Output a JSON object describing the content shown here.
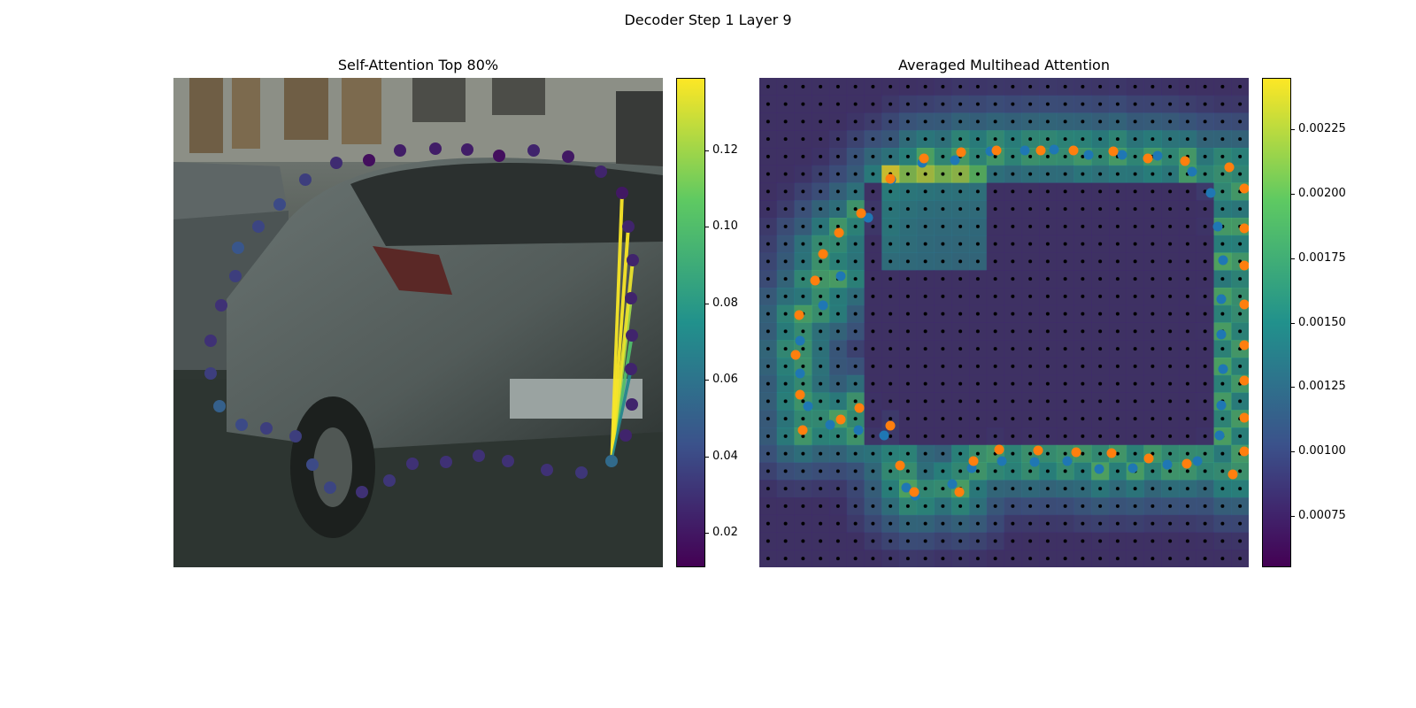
{
  "figure": {
    "suptitle": "Decoder Step 1 Layer 9"
  },
  "colors": {
    "viridis": [
      "#440154",
      "#3b528b",
      "#21918c",
      "#5ec962",
      "#fde725"
    ],
    "blue": "#1f77b4",
    "orange": "#ff7f0e"
  },
  "chart_data": [
    {
      "type": "scatter",
      "title": "Self-Attention Top 80%",
      "background": "car image (photo)",
      "colorbar": {
        "ticks": [
          "0.02",
          "0.04",
          "0.06",
          "0.08",
          "0.10",
          "0.12"
        ],
        "vmin": 0.011,
        "vmax": 0.139
      },
      "query_point": {
        "x": 495,
        "y": 433,
        "value": 0.055
      },
      "points": [
        {
          "x": 495,
          "y": 433,
          "v": 0.055
        },
        {
          "x": 511,
          "y": 404,
          "v": 0.025
        },
        {
          "x": 518,
          "y": 369,
          "v": 0.025
        },
        {
          "x": 517,
          "y": 329,
          "v": 0.025
        },
        {
          "x": 518,
          "y": 291,
          "v": 0.025
        },
        {
          "x": 517,
          "y": 249,
          "v": 0.025
        },
        {
          "x": 519,
          "y": 206,
          "v": 0.025
        },
        {
          "x": 514,
          "y": 168,
          "v": 0.025
        },
        {
          "x": 507,
          "y": 130,
          "v": 0.02
        },
        {
          "x": 483,
          "y": 106,
          "v": 0.025
        },
        {
          "x": 446,
          "y": 89,
          "v": 0.02
        },
        {
          "x": 407,
          "y": 82,
          "v": 0.025
        },
        {
          "x": 368,
          "y": 88,
          "v": 0.016
        },
        {
          "x": 332,
          "y": 81,
          "v": 0.022
        },
        {
          "x": 296,
          "y": 80,
          "v": 0.022
        },
        {
          "x": 256,
          "y": 82,
          "v": 0.022
        },
        {
          "x": 221,
          "y": 93,
          "v": 0.016
        },
        {
          "x": 184,
          "y": 96,
          "v": 0.028
        },
        {
          "x": 149,
          "y": 115,
          "v": 0.035
        },
        {
          "x": 120,
          "y": 143,
          "v": 0.04
        },
        {
          "x": 96,
          "y": 168,
          "v": 0.038
        },
        {
          "x": 73,
          "y": 192,
          "v": 0.045
        },
        {
          "x": 70,
          "y": 224,
          "v": 0.035
        },
        {
          "x": 54,
          "y": 257,
          "v": 0.03
        },
        {
          "x": 42,
          "y": 297,
          "v": 0.03
        },
        {
          "x": 42,
          "y": 334,
          "v": 0.035
        },
        {
          "x": 52,
          "y": 371,
          "v": 0.05
        },
        {
          "x": 77,
          "y": 392,
          "v": 0.04
        },
        {
          "x": 105,
          "y": 396,
          "v": 0.035
        },
        {
          "x": 138,
          "y": 405,
          "v": 0.035
        },
        {
          "x": 157,
          "y": 437,
          "v": 0.04
        },
        {
          "x": 177,
          "y": 463,
          "v": 0.038
        },
        {
          "x": 213,
          "y": 468,
          "v": 0.03
        },
        {
          "x": 244,
          "y": 455,
          "v": 0.032
        },
        {
          "x": 270,
          "y": 436,
          "v": 0.03
        },
        {
          "x": 308,
          "y": 434,
          "v": 0.03
        },
        {
          "x": 345,
          "y": 427,
          "v": 0.03
        },
        {
          "x": 378,
          "y": 433,
          "v": 0.03
        },
        {
          "x": 422,
          "y": 443,
          "v": 0.03
        },
        {
          "x": 461,
          "y": 446,
          "v": 0.032
        }
      ],
      "attention_links": [
        {
          "to": 4,
          "w": 0.1
        },
        {
          "to": 5,
          "w": 0.12
        },
        {
          "to": 6,
          "w": 0.135
        },
        {
          "to": 7,
          "w": 0.138
        },
        {
          "to": 8,
          "w": 0.138
        },
        {
          "to": 3,
          "w": 0.07
        }
      ]
    },
    {
      "type": "heatmap",
      "title": "Averaged Multihead Attention",
      "colorbar": {
        "ticks": [
          "0.00075",
          "0.00100",
          "0.00125",
          "0.00150",
          "0.00175",
          "0.00200",
          "0.00225"
        ],
        "vmin": 0.00055,
        "vmax": 0.00245
      },
      "grid": {
        "cols": 28,
        "rows": 28
      },
      "series": [
        {
          "name": "",
          "color": "blue",
          "points": [
            [
              184,
              96
            ],
            [
              221,
              93
            ],
            [
              261,
              83
            ],
            [
              300,
              82
            ],
            [
              333,
              81
            ],
            [
              372,
              87
            ],
            [
              410,
              87
            ],
            [
              450,
              88
            ],
            [
              489,
              106
            ],
            [
              510,
              130
            ],
            [
              518,
              168
            ],
            [
              524,
              206
            ],
            [
              522,
              250
            ],
            [
              522,
              290
            ],
            [
              524,
              329
            ],
            [
              522,
              370
            ],
            [
              520,
              404
            ],
            [
              495,
              433
            ],
            [
              461,
              437
            ],
            [
              422,
              441
            ],
            [
              384,
              442
            ],
            [
              348,
              433
            ],
            [
              311,
              434
            ],
            [
              274,
              433
            ],
            [
              240,
              441
            ],
            [
              218,
              459
            ],
            [
              176,
              472
            ],
            [
              166,
              463
            ],
            [
              141,
              404
            ],
            [
              112,
              398
            ],
            [
              80,
              392
            ],
            [
              55,
              371
            ],
            [
              46,
              334
            ],
            [
              46,
              297
            ],
            [
              72,
              257
            ],
            [
              92,
              224
            ],
            [
              123,
              158
            ],
            [
              149,
              115
            ]
          ]
        },
        {
          "name": "",
          "color": "orange",
          "points": [
            [
              186,
              91
            ],
            [
              228,
              84
            ],
            [
              268,
              82
            ],
            [
              318,
              82
            ],
            [
              355,
              82
            ],
            [
              400,
              83
            ],
            [
              439,
              91
            ],
            [
              481,
              94
            ],
            [
              531,
              101
            ],
            [
              548,
              125
            ],
            [
              548,
              170
            ],
            [
              548,
              212
            ],
            [
              548,
              256
            ],
            [
              548,
              302
            ],
            [
              548,
              342
            ],
            [
              548,
              384
            ],
            [
              548,
              422
            ],
            [
              535,
              448
            ],
            [
              483,
              436
            ],
            [
              440,
              430
            ],
            [
              398,
              424
            ],
            [
              358,
              423
            ],
            [
              315,
              421
            ],
            [
              271,
              420
            ],
            [
              242,
              433
            ],
            [
              226,
              468
            ],
            [
              175,
              468
            ],
            [
              159,
              438
            ],
            [
              148,
              393
            ],
            [
              113,
              373
            ],
            [
              92,
              386
            ],
            [
              49,
              398
            ],
            [
              46,
              358
            ],
            [
              41,
              313
            ],
            [
              45,
              268
            ],
            [
              63,
              229
            ],
            [
              72,
              199
            ],
            [
              90,
              175
            ],
            [
              115,
              153
            ],
            [
              148,
              114
            ]
          ]
        }
      ]
    }
  ]
}
